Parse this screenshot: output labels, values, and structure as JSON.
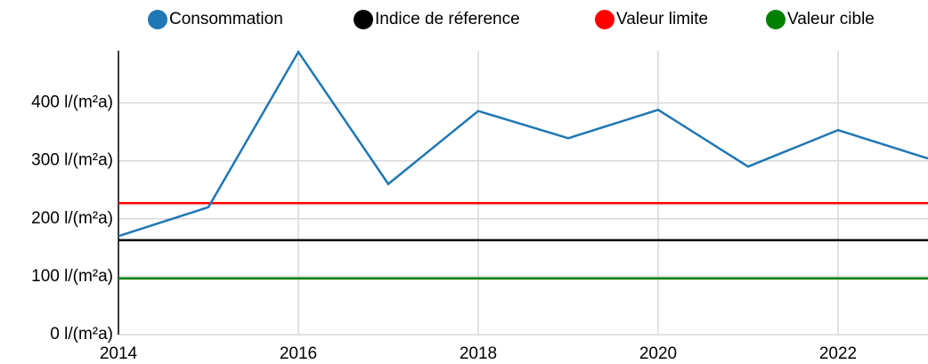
{
  "chart_data": {
    "type": "line",
    "x": [
      2014,
      2015,
      2016,
      2017,
      2018,
      2019,
      2020,
      2021,
      2022,
      2023
    ],
    "series": [
      {
        "name": "Consommation",
        "color": "#1f77b4",
        "values": [
          170,
          220,
          488,
          260,
          386,
          339,
          388,
          290,
          353,
          304
        ]
      },
      {
        "name": "Indice de réference",
        "color": "#000000",
        "values": [
          163,
          163,
          163,
          163,
          163,
          163,
          163,
          163,
          163,
          163
        ]
      },
      {
        "name": "Valeur limite",
        "color": "#ff0000",
        "values": [
          227,
          227,
          227,
          227,
          227,
          227,
          227,
          227,
          227,
          227
        ]
      },
      {
        "name": "Valeur cible",
        "color": "#008000",
        "values": [
          97,
          97,
          97,
          97,
          97,
          97,
          97,
          97,
          97,
          97
        ]
      }
    ],
    "xlim": [
      2014,
      2023
    ],
    "xticks": [
      2014,
      2016,
      2018,
      2020,
      2022
    ],
    "ylim": [
      0,
      490
    ],
    "yticks": [
      {
        "value": 0,
        "label": "0 l/(m²a)"
      },
      {
        "value": 100,
        "label": "100 l/(m²a)"
      },
      {
        "value": 200,
        "label": "200 l/(m²a)"
      },
      {
        "value": 300,
        "label": "300 l/(m²a)"
      },
      {
        "value": 400,
        "label": "400 l/(m²a)"
      }
    ],
    "grid": true
  }
}
